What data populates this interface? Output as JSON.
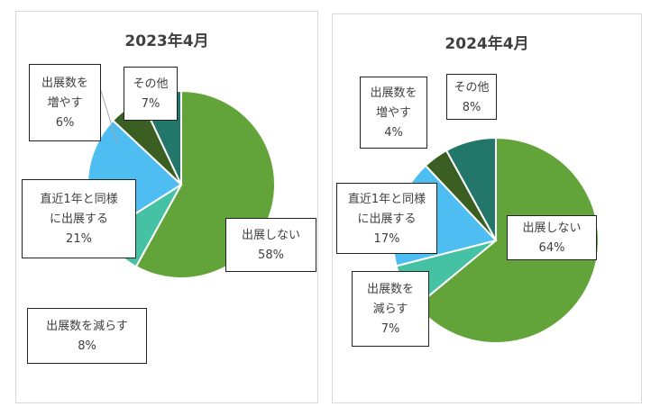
{
  "chart_data": [
    {
      "type": "pie",
      "title": "2023年4月",
      "slices": [
        {
          "label": "出展しない",
          "value": 58,
          "pct_text": "58%",
          "color": "#62a43a"
        },
        {
          "label": "出展数を減らす",
          "value": 8,
          "pct_text": "8%",
          "color": "#45c1a4"
        },
        {
          "label": "直近1年と同様に出展する",
          "value": 21,
          "pct_text": "21%",
          "color": "#4dbdf2"
        },
        {
          "label": "出展数を増やす",
          "value": 6,
          "pct_text": "6%",
          "color": "#3b5e22"
        },
        {
          "label": "その他",
          "value": 7,
          "pct_text": "7%",
          "color": "#23766a"
        }
      ],
      "label_lines": [
        [
          "出展しない",
          "58%"
        ],
        [
          "出展数を減らす",
          "8%"
        ],
        [
          "直近1年と同様",
          "に出展する",
          "21%"
        ],
        [
          "出展数を",
          "増やす",
          "6%"
        ],
        [
          "その他",
          "7%"
        ]
      ]
    },
    {
      "type": "pie",
      "title": "2024年4月",
      "slices": [
        {
          "label": "出展しない",
          "value": 64,
          "pct_text": "64%",
          "color": "#62a43a"
        },
        {
          "label": "出展数を減らす",
          "value": 7,
          "pct_text": "7%",
          "color": "#45c1a4"
        },
        {
          "label": "直近1年と同様に出展する",
          "value": 17,
          "pct_text": "17%",
          "color": "#4dbdf2"
        },
        {
          "label": "出展数を増やす",
          "value": 4,
          "pct_text": "4%",
          "color": "#3b5e22"
        },
        {
          "label": "その他",
          "value": 8,
          "pct_text": "8%",
          "color": "#23766a"
        }
      ],
      "label_lines": [
        [
          "出展しない",
          "64%"
        ],
        [
          "出展数を",
          "減らす",
          "7%"
        ],
        [
          "直近1年と同様",
          "に出展する",
          "17%"
        ],
        [
          "出展数を",
          "増やす",
          "4%"
        ],
        [
          "その他",
          "8%"
        ]
      ]
    }
  ]
}
